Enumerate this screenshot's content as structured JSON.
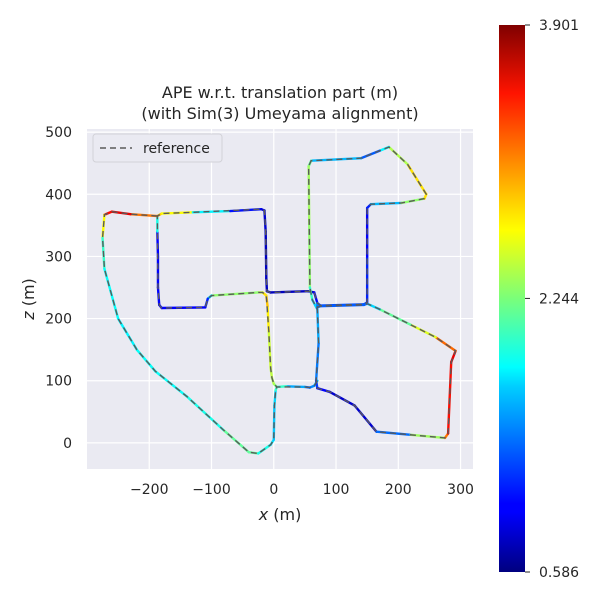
{
  "chart_data": {
    "type": "line",
    "title_line1": "APE w.r.t. translation part (m)",
    "title_line2": "(with Sim(3) Umeyama alignment)",
    "xlabel_var": "x",
    "xlabel_unit": " (m)",
    "ylabel_var": "z",
    "ylabel_unit": " (m)",
    "xlim": [
      -300,
      320
    ],
    "ylim": [
      -42,
      505
    ],
    "xticks": [
      -200,
      -100,
      0,
      100,
      200,
      300
    ],
    "xtick_labels": [
      "−200",
      "−100",
      "0",
      "100",
      "200",
      "300"
    ],
    "yticks": [
      0,
      100,
      200,
      300,
      400,
      500
    ],
    "ytick_labels": [
      "0",
      "100",
      "200",
      "300",
      "400",
      "500"
    ],
    "grid": true,
    "legend": {
      "position": "top-left",
      "label": "reference"
    },
    "colorbar": {
      "min": 0.586,
      "max": 3.901,
      "ticks": [
        0.586,
        2.244,
        3.901
      ],
      "tick_labels": [
        "0.586",
        "2.244",
        "3.901"
      ],
      "colormap": "jet"
    },
    "series": [
      {
        "name": "reference",
        "style": "dashed",
        "color": "#5a5a5a",
        "points": [
          [
            70,
            100
          ],
          [
            65,
            92
          ],
          [
            58,
            89
          ],
          [
            50,
            90
          ],
          [
            5,
            90
          ],
          [
            0,
            95
          ],
          [
            -3,
            105
          ],
          [
            -5,
            120
          ],
          [
            -8,
            180
          ],
          [
            -12,
            237
          ],
          [
            -18,
            242
          ],
          [
            -25,
            242
          ],
          [
            -100,
            237
          ],
          [
            -106,
            232
          ],
          [
            -110,
            218
          ],
          [
            -180,
            217
          ],
          [
            -184,
            222
          ],
          [
            -186,
            250
          ],
          [
            -187,
            365
          ],
          [
            -180,
            369
          ],
          [
            -130,
            371
          ],
          [
            -20,
            376
          ],
          [
            -15,
            374
          ],
          [
            -13,
            340
          ],
          [
            -12,
            265
          ],
          [
            -11,
            244
          ],
          [
            -5,
            242
          ],
          [
            55,
            244
          ],
          [
            65,
            242
          ],
          [
            70,
            225
          ],
          [
            75,
            221
          ],
          [
            145,
            223
          ],
          [
            150,
            226
          ],
          [
            150,
            378
          ],
          [
            156,
            384
          ],
          [
            205,
            386
          ],
          [
            242,
            393
          ],
          [
            245,
            400
          ],
          [
            215,
            448
          ],
          [
            185,
            476
          ],
          [
            170,
            470
          ],
          [
            140,
            458
          ],
          [
            60,
            454
          ],
          [
            56,
            445
          ],
          [
            58,
            250
          ],
          [
            62,
            230
          ],
          [
            70,
            215
          ],
          [
            72,
            160
          ],
          [
            68,
            100
          ],
          [
            70,
            88
          ],
          [
            90,
            82
          ],
          [
            130,
            60
          ],
          [
            165,
            18
          ],
          [
            275,
            8
          ],
          [
            280,
            15
          ],
          [
            285,
            130
          ],
          [
            292,
            148
          ],
          [
            260,
            170
          ],
          [
            220,
            190
          ],
          [
            170,
            215
          ],
          [
            150,
            224
          ],
          [
            145,
            222
          ],
          [
            75,
            220
          ],
          [
            70,
            218
          ],
          [
            70,
            225
          ]
        ]
      },
      {
        "name": "trajectory",
        "style": "solid",
        "points": [
          [
            70,
            100,
            1.8
          ],
          [
            65,
            92,
            1.5
          ],
          [
            58,
            89,
            1.4
          ],
          [
            50,
            90,
            1.3
          ],
          [
            20,
            91,
            1.8
          ],
          [
            5,
            90,
            2.2
          ],
          [
            0,
            95,
            2.3
          ],
          [
            -3,
            105,
            2.5
          ],
          [
            -5,
            120,
            2.4
          ],
          [
            -8,
            180,
            2.6
          ],
          [
            -10,
            220,
            2.8
          ],
          [
            -12,
            237,
            2.9
          ],
          [
            -18,
            242,
            2.6
          ],
          [
            -25,
            242,
            2.4
          ],
          [
            -100,
            237,
            2.2
          ],
          [
            -106,
            232,
            1.2
          ],
          [
            -110,
            218,
            1.0
          ],
          [
            -180,
            217,
            1.0
          ],
          [
            -184,
            222,
            1.0
          ],
          [
            -186,
            250,
            1.0
          ],
          [
            -186,
            300,
            1.0
          ],
          [
            -187,
            340,
            1.0
          ],
          [
            -187,
            365,
            2.8
          ],
          [
            -180,
            369,
            2.9
          ],
          [
            -130,
            371,
            2.4
          ],
          [
            -70,
            373,
            1.2
          ],
          [
            -20,
            376,
            0.9
          ],
          [
            -15,
            374,
            0.9
          ],
          [
            -13,
            340,
            0.8
          ],
          [
            -12,
            265,
            0.8
          ],
          [
            -11,
            244,
            0.8
          ],
          [
            -5,
            242,
            0.8
          ],
          [
            55,
            244,
            0.8
          ],
          [
            65,
            242,
            0.8
          ],
          [
            70,
            225,
            1.2
          ],
          [
            75,
            221,
            1.3
          ],
          [
            145,
            223,
            1.2
          ],
          [
            150,
            226,
            1.2
          ],
          [
            150,
            300,
            1.0
          ],
          [
            150,
            378,
            1.0
          ],
          [
            156,
            384,
            1.2
          ],
          [
            205,
            386,
            2.0
          ],
          [
            242,
            393,
            2.6
          ],
          [
            245,
            400,
            2.9
          ],
          [
            215,
            448,
            2.6
          ],
          [
            185,
            476,
            2.2
          ],
          [
            170,
            470,
            1.4
          ],
          [
            140,
            458,
            1.2
          ],
          [
            60,
            454,
            2.0
          ],
          [
            56,
            445,
            2.3
          ],
          [
            57,
            350,
            2.4
          ],
          [
            58,
            250,
            2.2
          ],
          [
            62,
            230,
            1.8
          ],
          [
            70,
            215,
            1.6
          ],
          [
            72,
            160,
            1.5
          ],
          [
            68,
            100,
            1.3
          ],
          [
            70,
            88,
            1.1
          ],
          [
            90,
            82,
            0.9
          ],
          [
            130,
            60,
            0.8
          ],
          [
            165,
            18,
            0.9
          ],
          [
            220,
            13,
            1.8
          ],
          [
            275,
            8,
            2.9
          ],
          [
            280,
            15,
            3.3
          ],
          [
            285,
            130,
            3.6
          ],
          [
            292,
            148,
            3.5
          ],
          [
            260,
            170,
            2.8
          ],
          [
            220,
            190,
            2.3
          ],
          [
            170,
            215,
            2.0
          ],
          [
            150,
            224,
            1.4
          ],
          [
            145,
            222,
            1.3
          ],
          [
            75,
            220,
            1.3
          ],
          [
            70,
            218,
            1.4
          ],
          [
            70,
            225,
            1.4
          ]
        ]
      }
    ],
    "outer_loop": {
      "reference_points": [
        [
          -187,
          365
        ],
        [
          -230,
          368
        ],
        [
          -260,
          372
        ],
        [
          -272,
          367
        ],
        [
          -275,
          330
        ],
        [
          -272,
          280
        ],
        [
          -250,
          200
        ],
        [
          -220,
          150
        ],
        [
          -190,
          115
        ],
        [
          -140,
          75
        ],
        [
          -80,
          20
        ],
        [
          -40,
          -15
        ],
        [
          -25,
          -17
        ],
        [
          -5,
          -3
        ],
        [
          0,
          5
        ],
        [
          1,
          60
        ],
        [
          3,
          85
        ],
        [
          5,
          90
        ]
      ],
      "trajectory_points": [
        [
          -187,
          365,
          2.8
        ],
        [
          -230,
          368,
          3.4
        ],
        [
          -260,
          372,
          3.7
        ],
        [
          -272,
          367,
          3.2
        ],
        [
          -275,
          330,
          2.1
        ],
        [
          -272,
          280,
          1.9
        ],
        [
          -250,
          200,
          1.8
        ],
        [
          -220,
          150,
          1.8
        ],
        [
          -190,
          115,
          1.9
        ],
        [
          -140,
          75,
          1.8
        ],
        [
          -80,
          20,
          2.0
        ],
        [
          -40,
          -15,
          2.3
        ],
        [
          -25,
          -17,
          2.0
        ],
        [
          -5,
          -3,
          1.8
        ],
        [
          0,
          5,
          1.7
        ],
        [
          1,
          60,
          1.6
        ],
        [
          3,
          85,
          1.8
        ],
        [
          5,
          90,
          2.2
        ]
      ]
    }
  }
}
